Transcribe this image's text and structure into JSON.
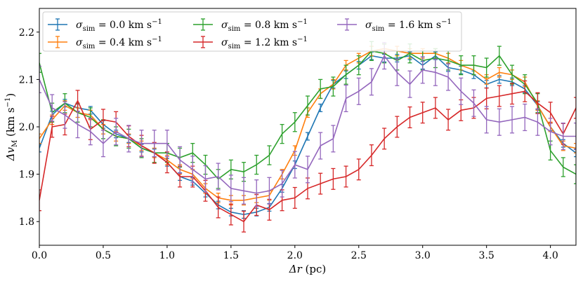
{
  "chart_data": {
    "type": "line",
    "xlabel_main": "Δr",
    "xlabel_unit": " (pc)",
    "ylabel_main": "Δv",
    "ylabel_sub": "M",
    "ylabel_unit": " (km s",
    "ylabel_sup": "−1",
    "ylabel_close": ")",
    "xlim": [
      0.0,
      4.2
    ],
    "ylim": [
      1.75,
      2.25
    ],
    "xticks": [
      {
        "v": 0.0,
        "label": "0.0"
      },
      {
        "v": 0.5,
        "label": "0.5"
      },
      {
        "v": 1.0,
        "label": "1.0"
      },
      {
        "v": 1.5,
        "label": "1.5"
      },
      {
        "v": 2.0,
        "label": "2.0"
      },
      {
        "v": 2.5,
        "label": "2.5"
      },
      {
        "v": 3.0,
        "label": "3.0"
      },
      {
        "v": 3.5,
        "label": "3.5"
      },
      {
        "v": 4.0,
        "label": "4.0"
      }
    ],
    "yticks": [
      {
        "v": 1.8,
        "label": "1.8"
      },
      {
        "v": 1.9,
        "label": "1.9"
      },
      {
        "v": 2.0,
        "label": "2.0"
      },
      {
        "v": 2.1,
        "label": "2.1"
      },
      {
        "v": 2.2,
        "label": "2.2"
      }
    ],
    "legend_position": "top-left",
    "legend_prefix": "σ",
    "legend_sub": "sim",
    "x": [
      0.0,
      0.1,
      0.2,
      0.3,
      0.4,
      0.5,
      0.6,
      0.7,
      0.8,
      0.9,
      1.0,
      1.1,
      1.2,
      1.3,
      1.4,
      1.5,
      1.6,
      1.7,
      1.8,
      1.9,
      2.0,
      2.1,
      2.2,
      2.3,
      2.4,
      2.5,
      2.6,
      2.7,
      2.8,
      2.9,
      3.0,
      3.1,
      3.2,
      3.3,
      3.4,
      3.5,
      3.6,
      3.7,
      3.8,
      3.9,
      4.0,
      4.1,
      4.2
    ],
    "series": [
      {
        "name": " = 0.0 km s",
        "sup": "−1",
        "color": "#1f77b4",
        "values": [
          1.955,
          2.025,
          2.05,
          2.04,
          2.035,
          2.005,
          1.985,
          1.975,
          1.955,
          1.945,
          1.925,
          1.895,
          1.885,
          1.86,
          1.835,
          1.82,
          1.815,
          1.82,
          1.83,
          1.87,
          1.92,
          1.98,
          2.04,
          2.09,
          2.11,
          2.13,
          2.15,
          2.145,
          2.145,
          2.15,
          2.13,
          2.15,
          2.125,
          2.12,
          2.11,
          2.09,
          2.1,
          2.095,
          2.08,
          2.045,
          2.0,
          1.965,
          1.945
        ],
        "err": [
          0.008,
          0.008,
          0.008,
          0.008,
          0.008,
          0.008,
          0.008,
          0.008,
          0.008,
          0.008,
          0.008,
          0.008,
          0.008,
          0.008,
          0.008,
          0.008,
          0.008,
          0.008,
          0.008,
          0.008,
          0.008,
          0.008,
          0.008,
          0.008,
          0.008,
          0.008,
          0.008,
          0.008,
          0.008,
          0.008,
          0.008,
          0.008,
          0.008,
          0.008,
          0.008,
          0.008,
          0.008,
          0.008,
          0.008,
          0.008,
          0.008,
          0.008,
          0.008
        ]
      },
      {
        "name": " = 0.4 km s",
        "sup": "−1",
        "color": "#ff7f0e",
        "values": [
          1.975,
          2.015,
          2.045,
          2.03,
          2.025,
          1.995,
          1.98,
          1.975,
          1.96,
          1.945,
          1.93,
          1.91,
          1.9,
          1.87,
          1.85,
          1.845,
          1.845,
          1.85,
          1.855,
          1.9,
          1.95,
          2.03,
          2.07,
          2.09,
          2.13,
          2.145,
          2.16,
          2.165,
          2.16,
          2.155,
          2.155,
          2.155,
          2.145,
          2.13,
          2.12,
          2.1,
          2.115,
          2.11,
          2.095,
          2.045,
          2.0,
          1.96,
          1.955
        ],
        "err": [
          0.01,
          0.01,
          0.01,
          0.01,
          0.01,
          0.01,
          0.01,
          0.01,
          0.01,
          0.01,
          0.01,
          0.01,
          0.01,
          0.01,
          0.01,
          0.01,
          0.01,
          0.01,
          0.01,
          0.01,
          0.01,
          0.01,
          0.01,
          0.01,
          0.01,
          0.01,
          0.01,
          0.01,
          0.01,
          0.01,
          0.01,
          0.01,
          0.01,
          0.01,
          0.01,
          0.01,
          0.01,
          0.01,
          0.01,
          0.01,
          0.01,
          0.01,
          0.01
        ]
      },
      {
        "name": " = 0.8 km s",
        "sup": "−1",
        "color": "#2ca02c",
        "values": [
          2.135,
          2.03,
          2.05,
          2.03,
          2.02,
          1.995,
          1.98,
          1.975,
          1.955,
          1.945,
          1.945,
          1.935,
          1.945,
          1.92,
          1.89,
          1.91,
          1.905,
          1.92,
          1.94,
          1.985,
          2.01,
          2.045,
          2.08,
          2.085,
          2.11,
          2.13,
          2.16,
          2.155,
          2.14,
          2.155,
          2.14,
          2.145,
          2.14,
          2.13,
          2.13,
          2.125,
          2.15,
          2.11,
          2.09,
          2.05,
          1.95,
          1.915,
          1.9
        ],
        "err": [
          0.02,
          0.02,
          0.02,
          0.02,
          0.02,
          0.02,
          0.02,
          0.02,
          0.02,
          0.02,
          0.02,
          0.02,
          0.02,
          0.02,
          0.02,
          0.02,
          0.02,
          0.02,
          0.02,
          0.02,
          0.02,
          0.02,
          0.02,
          0.02,
          0.02,
          0.02,
          0.02,
          0.02,
          0.02,
          0.02,
          0.02,
          0.02,
          0.02,
          0.02,
          0.02,
          0.02,
          0.02,
          0.02,
          0.02,
          0.02,
          0.02,
          0.02,
          0.02
        ]
      },
      {
        "name": " = 1.2 km s",
        "sup": "−1",
        "color": "#d62728",
        "values": [
          1.845,
          2.0,
          2.005,
          2.055,
          1.995,
          2.015,
          2.01,
          1.98,
          1.96,
          1.945,
          1.925,
          1.895,
          1.895,
          1.865,
          1.83,
          1.815,
          1.8,
          1.835,
          1.825,
          1.845,
          1.85,
          1.87,
          1.88,
          1.89,
          1.895,
          1.91,
          1.94,
          1.975,
          2.0,
          2.02,
          2.03,
          2.04,
          2.015,
          2.035,
          2.04,
          2.06,
          2.065,
          2.07,
          2.075,
          2.05,
          2.03,
          1.985,
          2.04
        ],
        "err": [
          0.022,
          0.022,
          0.022,
          0.022,
          0.022,
          0.022,
          0.022,
          0.022,
          0.022,
          0.022,
          0.022,
          0.022,
          0.022,
          0.022,
          0.022,
          0.022,
          0.022,
          0.022,
          0.022,
          0.022,
          0.022,
          0.022,
          0.022,
          0.022,
          0.022,
          0.022,
          0.022,
          0.022,
          0.022,
          0.022,
          0.022,
          0.022,
          0.022,
          0.022,
          0.022,
          0.022,
          0.022,
          0.022,
          0.022,
          0.022,
          0.022,
          0.022,
          0.022
        ]
      },
      {
        "name": " = 1.6 km s",
        "sup": "−1",
        "color": "#9467bd",
        "values": [
          2.1,
          2.04,
          2.025,
          2.005,
          1.99,
          1.965,
          1.99,
          1.975,
          1.965,
          1.965,
          1.965,
          1.93,
          1.91,
          1.89,
          1.895,
          1.87,
          1.865,
          1.86,
          1.865,
          1.88,
          1.92,
          1.91,
          1.96,
          1.975,
          2.06,
          2.075,
          2.095,
          2.15,
          2.115,
          2.09,
          2.12,
          2.115,
          2.105,
          2.075,
          2.05,
          2.015,
          2.01,
          2.015,
          2.02,
          2.01,
          1.99,
          1.98,
          1.98
        ],
        "err": [
          0.028,
          0.028,
          0.028,
          0.028,
          0.028,
          0.028,
          0.028,
          0.028,
          0.028,
          0.028,
          0.028,
          0.028,
          0.028,
          0.028,
          0.028,
          0.028,
          0.028,
          0.028,
          0.028,
          0.028,
          0.028,
          0.028,
          0.028,
          0.028,
          0.028,
          0.028,
          0.028,
          0.028,
          0.028,
          0.028,
          0.028,
          0.028,
          0.028,
          0.028,
          0.028,
          0.028,
          0.028,
          0.028,
          0.028,
          0.028,
          0.028,
          0.028,
          0.028
        ]
      }
    ]
  }
}
